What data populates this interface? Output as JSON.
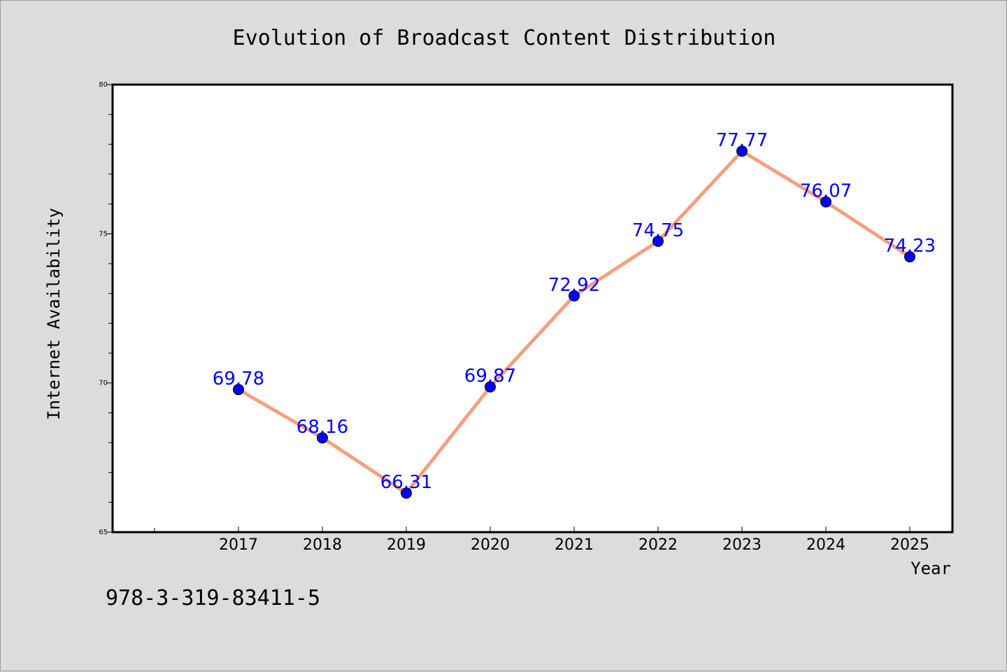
{
  "chart_data": {
    "type": "line",
    "title": "Evolution of Broadcast Content Distribution",
    "xlabel": "Year",
    "ylabel": "Internet Availability",
    "categories": [
      "2017",
      "2018",
      "2019",
      "2020",
      "2021",
      "2022",
      "2023",
      "2024",
      "2025"
    ],
    "values": [
      69.78,
      68.16,
      66.31,
      69.87,
      72.92,
      74.75,
      77.77,
      76.07,
      74.23
    ],
    "value_labels": [
      "69.78",
      "68.16",
      "66.31",
      "69.87",
      "72.92",
      "74.75",
      "77.77",
      "76.07",
      "74.23"
    ],
    "ylim": [
      65,
      80
    ],
    "yticks": [
      "65",
      "70",
      "75",
      "80"
    ],
    "grid": false,
    "legend": "none",
    "colors": {
      "line": "#f4a07e",
      "marker": "#0000ff",
      "label": "#0000ff",
      "plot_background": "#ffffff",
      "figure_background": "#dcdcdc"
    }
  },
  "footer": {
    "isbn": "978-3-319-83411-5"
  }
}
